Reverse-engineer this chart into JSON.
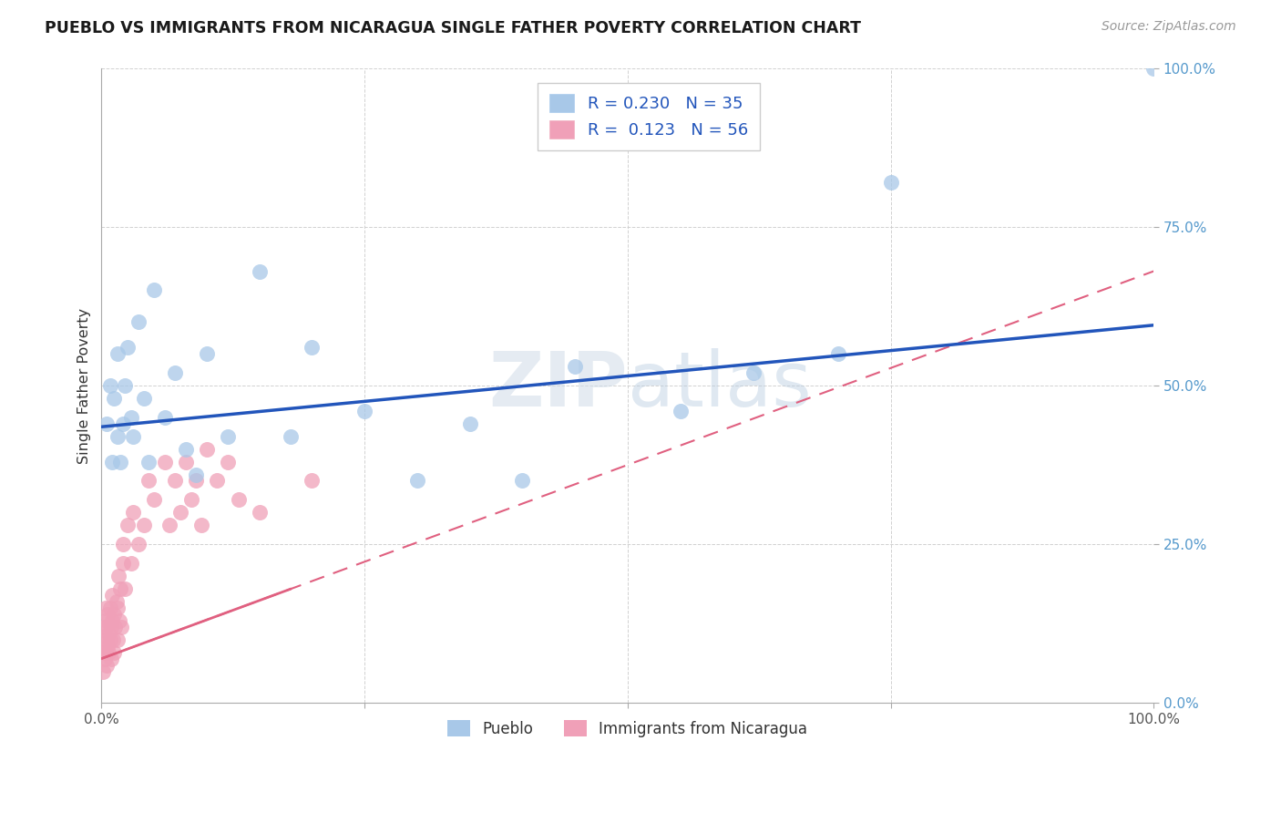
{
  "title": "PUEBLO VS IMMIGRANTS FROM NICARAGUA SINGLE FATHER POVERTY CORRELATION CHART",
  "source": "Source: ZipAtlas.com",
  "xlabel": "",
  "ylabel": "Single Father Poverty",
  "series1_name": "Pueblo",
  "series2_name": "Immigrants from Nicaragua",
  "series1_color": "#a8c8e8",
  "series2_color": "#f0a0b8",
  "series1_line_color": "#2255bb",
  "series2_line_color": "#e06080",
  "series1_R": 0.23,
  "series1_N": 35,
  "series2_R": 0.123,
  "series2_N": 56,
  "watermark": "ZIPatlas",
  "xlim": [
    0,
    1
  ],
  "ylim": [
    0,
    1
  ],
  "xticks": [
    0,
    0.25,
    0.5,
    0.75,
    1.0
  ],
  "yticks": [
    0,
    0.25,
    0.5,
    0.75,
    1.0
  ],
  "xtick_labels": [
    "0.0%",
    "",
    "",
    "",
    "100.0%"
  ],
  "ytick_labels": [
    "0.0%",
    "25.0%",
    "50.0%",
    "75.0%",
    "100.0%"
  ],
  "pueblo_x": [
    0.005,
    0.008,
    0.01,
    0.012,
    0.015,
    0.015,
    0.018,
    0.02,
    0.022,
    0.025,
    0.028,
    0.03,
    0.035,
    0.04,
    0.045,
    0.05,
    0.06,
    0.07,
    0.08,
    0.09,
    0.1,
    0.12,
    0.15,
    0.18,
    0.2,
    0.25,
    0.3,
    0.35,
    0.4,
    0.45,
    0.55,
    0.62,
    0.7,
    0.75,
    1.0
  ],
  "pueblo_y": [
    0.44,
    0.5,
    0.38,
    0.48,
    0.42,
    0.55,
    0.38,
    0.44,
    0.5,
    0.56,
    0.45,
    0.42,
    0.6,
    0.48,
    0.38,
    0.65,
    0.45,
    0.52,
    0.4,
    0.36,
    0.55,
    0.42,
    0.68,
    0.42,
    0.56,
    0.46,
    0.35,
    0.44,
    0.35,
    0.53,
    0.46,
    0.52,
    0.55,
    0.82,
    1.0
  ],
  "nic_x": [
    0.001,
    0.002,
    0.002,
    0.003,
    0.003,
    0.004,
    0.004,
    0.004,
    0.005,
    0.005,
    0.005,
    0.006,
    0.006,
    0.007,
    0.007,
    0.008,
    0.008,
    0.009,
    0.009,
    0.01,
    0.01,
    0.011,
    0.012,
    0.012,
    0.013,
    0.014,
    0.015,
    0.015,
    0.016,
    0.017,
    0.018,
    0.019,
    0.02,
    0.02,
    0.022,
    0.025,
    0.028,
    0.03,
    0.035,
    0.04,
    0.045,
    0.05,
    0.06,
    0.065,
    0.07,
    0.075,
    0.08,
    0.085,
    0.09,
    0.095,
    0.1,
    0.11,
    0.12,
    0.13,
    0.15,
    0.2
  ],
  "nic_y": [
    0.05,
    0.08,
    0.12,
    0.07,
    0.1,
    0.08,
    0.12,
    0.15,
    0.1,
    0.06,
    0.13,
    0.09,
    0.14,
    0.11,
    0.08,
    0.15,
    0.1,
    0.12,
    0.07,
    0.13,
    0.17,
    0.1,
    0.08,
    0.14,
    0.12,
    0.16,
    0.1,
    0.15,
    0.2,
    0.13,
    0.18,
    0.12,
    0.22,
    0.25,
    0.18,
    0.28,
    0.22,
    0.3,
    0.25,
    0.28,
    0.35,
    0.32,
    0.38,
    0.28,
    0.35,
    0.3,
    0.38,
    0.32,
    0.35,
    0.28,
    0.4,
    0.35,
    0.38,
    0.32,
    0.3,
    0.35
  ],
  "pueblo_line_x0": 0.0,
  "pueblo_line_y0": 0.435,
  "pueblo_line_x1": 1.0,
  "pueblo_line_y1": 0.595,
  "nic_line_x0": 0.0,
  "nic_line_y0": 0.07,
  "nic_line_x1": 1.0,
  "nic_line_y1": 0.68
}
